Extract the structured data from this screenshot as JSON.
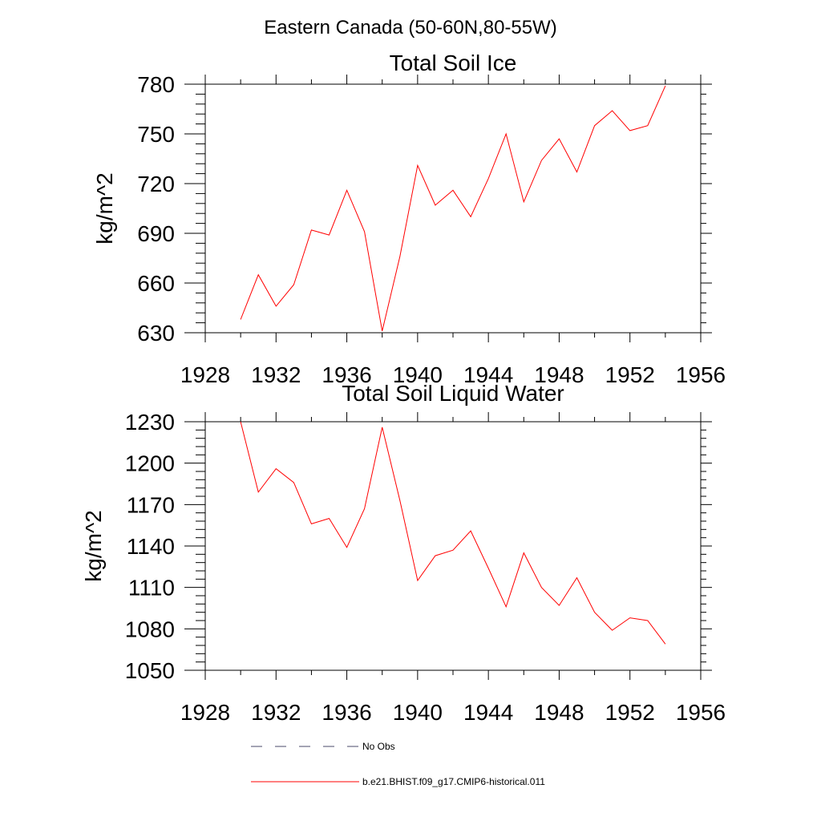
{
  "figure_title": "Eastern Canada (50-60N,80-55W)",
  "chart_data": [
    {
      "type": "line",
      "title": "Total Soil Ice",
      "xlabel": "",
      "ylabel": "kg/m^2",
      "xlim": [
        1928,
        1956
      ],
      "ylim": [
        630,
        780
      ],
      "xticks": [
        1928,
        1932,
        1936,
        1940,
        1944,
        1948,
        1952,
        1956
      ],
      "yticks": [
        630,
        660,
        690,
        720,
        750,
        780
      ],
      "grid": false,
      "series": [
        {
          "name": "b.e21.BHIST.f09_g17.CMIP6-historical.011",
          "color": "#ff0000",
          "x": [
            1930,
            1931,
            1932,
            1933,
            1934,
            1935,
            1936,
            1937,
            1938,
            1939,
            1940,
            1941,
            1942,
            1943,
            1944,
            1945,
            1946,
            1947,
            1948,
            1949,
            1950,
            1951,
            1952,
            1953,
            1954
          ],
          "y": [
            638,
            665,
            646,
            659,
            692,
            689,
            716,
            691,
            631,
            676,
            731,
            707,
            716,
            700,
            723,
            750,
            709,
            734,
            747,
            727,
            755,
            764,
            752,
            755,
            779
          ]
        }
      ]
    },
    {
      "type": "line",
      "title": "Total Soil Liquid Water",
      "xlabel": "",
      "ylabel": "kg/m^2",
      "xlim": [
        1928,
        1956
      ],
      "ylim": [
        1050,
        1230
      ],
      "xticks": [
        1928,
        1932,
        1936,
        1940,
        1944,
        1948,
        1952,
        1956
      ],
      "yticks": [
        1050,
        1080,
        1110,
        1140,
        1170,
        1200,
        1230
      ],
      "grid": false,
      "series": [
        {
          "name": "b.e21.BHIST.f09_g17.CMIP6-historical.011",
          "color": "#ff0000",
          "x": [
            1930,
            1931,
            1932,
            1933,
            1934,
            1935,
            1936,
            1937,
            1938,
            1939,
            1940,
            1941,
            1942,
            1943,
            1944,
            1945,
            1946,
            1947,
            1948,
            1949,
            1950,
            1951,
            1952,
            1953,
            1954
          ],
          "y": [
            1230,
            1179,
            1196,
            1186,
            1156,
            1160,
            1139,
            1167,
            1226,
            1173,
            1115,
            1133,
            1137,
            1151,
            1124,
            1096,
            1135,
            1110,
            1097,
            1117,
            1092,
            1079,
            1088,
            1086,
            1069
          ]
        }
      ]
    }
  ],
  "legend": [
    {
      "label": "No Obs",
      "color": "#4a4a6a",
      "style": "dashed"
    },
    {
      "label": "b.e21.BHIST.f09_g17.CMIP6-historical.011",
      "color": "#ff0000",
      "style": "solid"
    }
  ]
}
